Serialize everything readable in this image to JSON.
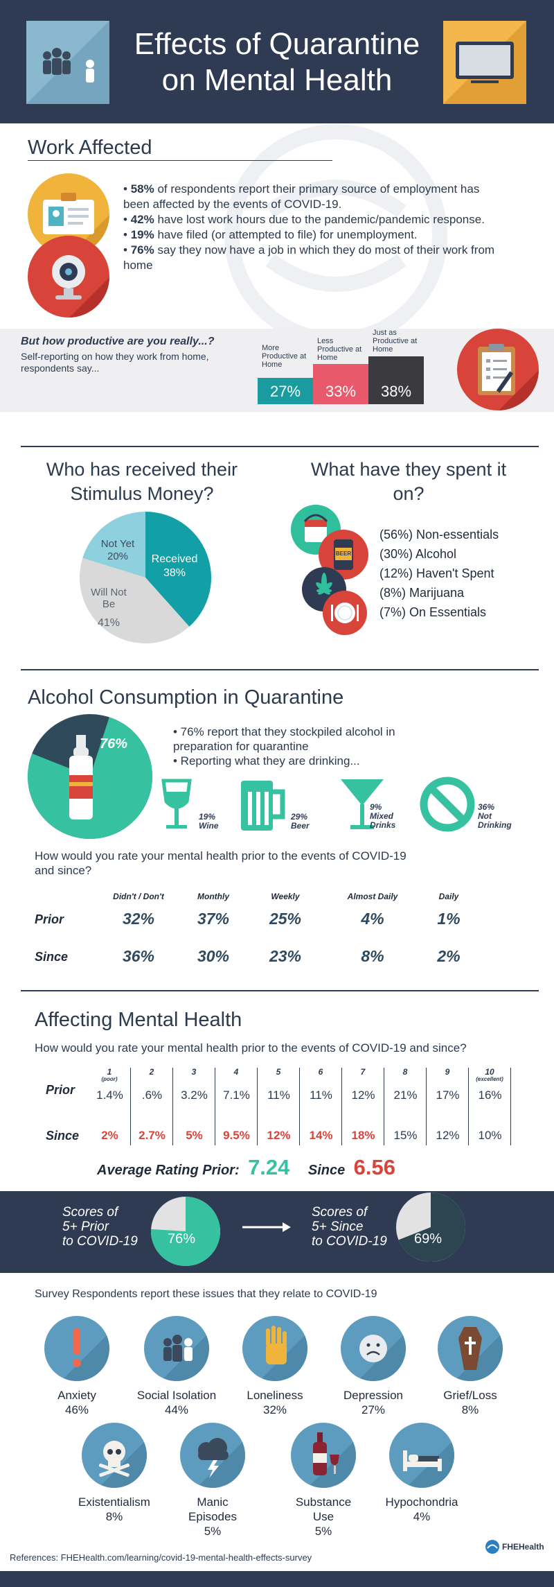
{
  "header": {
    "title_line1": "Effects of Quarantine",
    "title_line2": "on Mental Health"
  },
  "work": {
    "title": "Work Affected",
    "bullets": [
      {
        "bold": "58%",
        "text": " of respondents report their primary source of employment has been affected by the events of COVID-19."
      },
      {
        "bold": "42%",
        "text": " have lost work hours due to the pandemic/pandemic response."
      },
      {
        "bold": "19%",
        "text": " have filed (or attempted to file) for unemployment."
      },
      {
        "bold": "76%",
        "text": " say they now have a job in which they do most of their work from home"
      }
    ]
  },
  "productivity": {
    "question": "But how productive are you really...?",
    "sub": "Self-reporting on how they work from home, respondents say...",
    "bars": [
      {
        "label": "More Productive at Home",
        "value": "27%",
        "pct": 27,
        "color": "#1a9ba0"
      },
      {
        "label": "Less Productive at Home",
        "value": "33%",
        "pct": 33,
        "color": "#e85a6b"
      },
      {
        "label": "Just as Productive at Home",
        "value": "38%",
        "pct": 38,
        "color": "#3a3a3f"
      }
    ]
  },
  "stimulus": {
    "title_line1": "Who has received their",
    "title_line2": "Stimulus Money?",
    "slices": [
      {
        "name": "Received",
        "value": "38%",
        "pct": 38,
        "color": "#12a0a6"
      },
      {
        "name": "Will Not Be",
        "value": "41%",
        "pct": 41,
        "color": "#d9d9d9"
      },
      {
        "name": "Not Yet",
        "value": "20%",
        "pct": 20,
        "color": "#8fd0de"
      }
    ]
  },
  "spent": {
    "title_line1": "What have they spent it",
    "title_line2": "on?",
    "items": [
      "(56%) Non-essentials",
      "(30%) Alcohol",
      "(12%) Haven't Spent",
      "(8%)   Marijuana",
      "(7%)   On Essentials"
    ],
    "beer_label": "BEER"
  },
  "alcohol": {
    "title": "Alcohol Consumption in Quarantine",
    "pie_value": "76%",
    "pie_pct": 76,
    "bullets": [
      "• 76% report that they stockpiled alcohol in preparation for quarantine",
      "• Reporting what they are drinking..."
    ],
    "drinks": [
      {
        "value": "19%",
        "name": "Wine"
      },
      {
        "value": "29%",
        "name": "Beer"
      },
      {
        "value": "9%",
        "name": "Mixed Drinks"
      },
      {
        "value": "36%",
        "name": "Not Drinking"
      }
    ],
    "question": "How would you rate your mental health prior to the events of COVID-19 and since?",
    "table": {
      "headers": [
        "Didn't / Don't",
        "Monthly",
        "Weekly",
        "Almost Daily",
        "Daily"
      ],
      "rows": [
        {
          "label": "Prior",
          "values": [
            "32%",
            "37%",
            "25%",
            "4%",
            "1%"
          ]
        },
        {
          "label": "Since",
          "values": [
            "36%",
            "30%",
            "23%",
            "8%",
            "2%"
          ]
        }
      ]
    }
  },
  "mental": {
    "title": "Affecting Mental Health",
    "question": "How would you rate your mental health prior to the events of COVID-19 and since?",
    "scale": [
      "1",
      "2",
      "3",
      "4",
      "5",
      "6",
      "7",
      "8",
      "9",
      "10"
    ],
    "poor": "(poor)",
    "excellent": "(excellent)",
    "prior_label": "Prior",
    "since_label": "Since",
    "prior": [
      "1.4%",
      ".6%",
      "3.2%",
      "7.1%",
      "11%",
      "11%",
      "12%",
      "21%",
      "17%",
      "16%"
    ],
    "since": [
      "2%",
      "2.7%",
      "5%",
      "9.5%",
      "12%",
      "14%",
      "18%",
      "15%",
      "12%",
      "10%"
    ],
    "avg_prior_label": "Average Rating Prior:",
    "avg_prior": "7.24",
    "avg_since_label": "Since",
    "avg_since": "6.56"
  },
  "scores": {
    "prior_text": [
      "Scores of",
      "5+ Prior",
      "to COVID-19"
    ],
    "prior_value": "76%",
    "prior_pct": 76,
    "since_text": [
      "Scores of",
      "5+ Since",
      "to COVID-19"
    ],
    "since_value": "69%",
    "since_pct": 69
  },
  "issues": {
    "title": "Survey Respondents report these issues that they relate to COVID-19",
    "row1": [
      {
        "name": "Anxiety",
        "value": "46%",
        "icon": "exclamation-icon"
      },
      {
        "name": "Social Isolation",
        "value": "44%",
        "icon": "people-icon"
      },
      {
        "name": "Loneliness",
        "value": "32%",
        "icon": "hand-icon"
      },
      {
        "name": "Depression",
        "value": "27%",
        "icon": "sad-face-icon"
      },
      {
        "name": "Grief/Loss",
        "value": "8%",
        "icon": "coffin-icon"
      }
    ],
    "row2": [
      {
        "name": "Existentialism",
        "value": "8%",
        "icon": "skull-icon"
      },
      {
        "name": "Manic Episodes",
        "value": "5%",
        "icon": "storm-cloud-icon"
      },
      {
        "name": "Substance Use",
        "value": "5%",
        "icon": "wine-bottle-icon"
      },
      {
        "name": "Hypochondria",
        "value": "4%",
        "icon": "bed-icon"
      }
    ]
  },
  "footer": {
    "references": "References: FHEHealth.com/learning/covid-19-mental-health-effects-survey",
    "logo": "FHEHealth"
  }
}
